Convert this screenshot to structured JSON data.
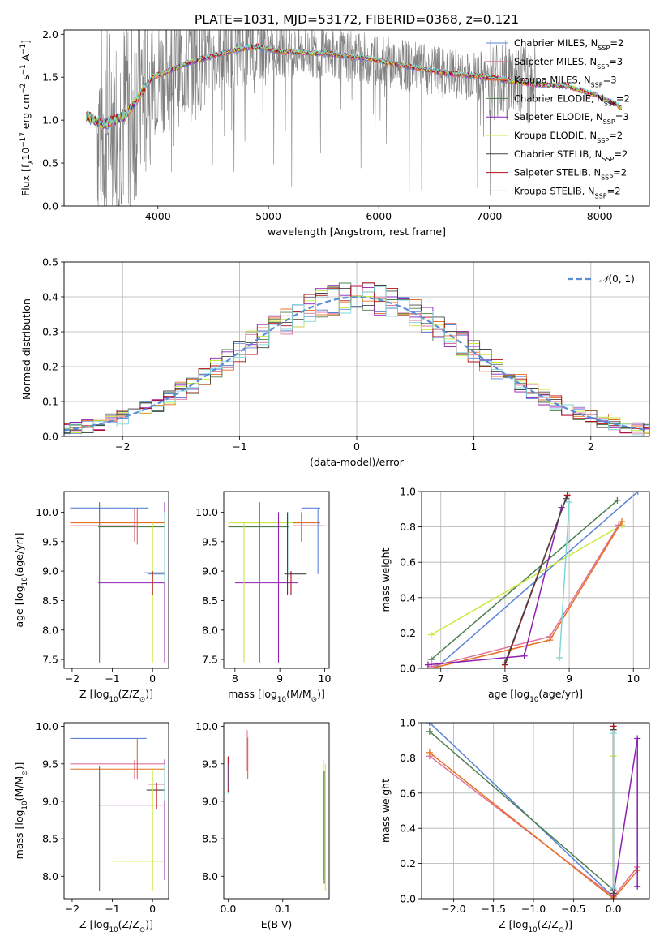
{
  "figure": {
    "title": "PLATE=1031, MJD=53172, FIBERID=0368, z=0.121"
  },
  "colors": {
    "series": [
      "#5b84d6",
      "#e0729a",
      "#e86f1f",
      "#4e7d4e",
      "#8e1fb3",
      "#c8ea3b",
      "#444444",
      "#b01015",
      "#7ed8d8"
    ],
    "data_gray": "#808080",
    "normal_curve": "#5b8dd6",
    "grid": "#b0b0b0"
  },
  "legend": [
    {
      "text": "Chabrier MILES, N",
      "sub": "SSP",
      "tail": "=2"
    },
    {
      "text": "Salpeter MILES, N",
      "sub": "SSP",
      "tail": "=3"
    },
    {
      "text": "Kroupa MILES, N",
      "sub": "SSP",
      "tail": "=3"
    },
    {
      "text": "Chabrier ELODIE, N",
      "sub": "SSP",
      "tail": "=2"
    },
    {
      "text": "Salpeter ELODIE, N",
      "sub": "SSP",
      "tail": "=3"
    },
    {
      "text": "Kroupa ELODIE, N",
      "sub": "SSP",
      "tail": "=2"
    },
    {
      "text": "Chabrier STELIB, N",
      "sub": "SSP",
      "tail": "=2"
    },
    {
      "text": "Salpeter STELIB, N",
      "sub": "SSP",
      "tail": "=2"
    },
    {
      "text": "Kroupa STELIB, N",
      "sub": "SSP",
      "tail": "=2"
    }
  ],
  "chart_data": [
    {
      "id": "spectrum",
      "type": "line",
      "title": "PLATE=1031, MJD=53172, FIBERID=0368, z=0.121",
      "xlabel": "wavelength [Angstrom, rest frame]",
      "ylabel": "Flux [f",
      "ylabel_sub": "λ",
      "ylabel_rest": "10",
      "ylabel_sup": "−17",
      "ylabel_tail": " erg cm",
      "ylabel_sup2": "−2",
      "ylabel_tail2": " s",
      "ylabel_sup3": "−1",
      "ylabel_tail3": " A",
      "ylabel_sup4": "−1",
      "ylabel_end": "]",
      "xlim": [
        3150,
        8450
      ],
      "ylim": [
        0,
        2.05
      ],
      "xticks": [
        4000,
        5000,
        6000,
        7000,
        8000
      ],
      "yticks": [
        0.0,
        0.5,
        1.0,
        1.5,
        2.0
      ],
      "continuum_knots_x": [
        3350,
        3500,
        3700,
        3950,
        4300,
        4700,
        4900,
        5100,
        5500,
        5900,
        6300,
        6600,
        7000,
        7400,
        7700,
        8000,
        8200
      ],
      "continuum_knots_y": [
        1.05,
        0.95,
        1.05,
        1.5,
        1.68,
        1.82,
        1.86,
        1.8,
        1.78,
        1.72,
        1.62,
        1.55,
        1.5,
        1.42,
        1.4,
        1.28,
        1.15
      ],
      "legend_position": "upper right"
    },
    {
      "id": "residual_hist",
      "type": "line",
      "xlabel": "(data-model)/error",
      "ylabel": "Normed distribution",
      "xlim": [
        -2.5,
        2.5
      ],
      "ylim": [
        0,
        0.5
      ],
      "xticks": [
        -2,
        -1,
        0,
        1,
        2
      ],
      "yticks": [
        0.0,
        0.1,
        0.2,
        0.3,
        0.4,
        0.5
      ],
      "bin_width": 0.1,
      "normal_curve": {
        "name": "N(0,1)",
        "label_main": "𝒩",
        "label_args": "(0, 1)",
        "mu": 0,
        "sigma": 1
      },
      "legend_position": "upper right",
      "grid": true
    },
    {
      "id": "age_vs_Z",
      "type": "scatter",
      "xlabel": "Z [log",
      "xlabel_sub": "10",
      "xlabel_tail": "(Z/Z",
      "xlabel_sub2": "⊙",
      "xlabel_end": ")]",
      "ylabel": "age  [log",
      "ylabel_sub": "10",
      "ylabel_tail": "(age/yr)]",
      "xlim": [
        -2.2,
        0.4
      ],
      "ylim": [
        7.35,
        10.35
      ],
      "xticks": [
        -2,
        -1,
        0
      ],
      "yticks": [
        7.5,
        8.0,
        8.5,
        9.0,
        9.5,
        10.0
      ],
      "hlines": [
        {
          "c": 0,
          "y": 10.07,
          "x0": -2.05,
          "x1": -0.1
        },
        {
          "c": 1,
          "y": 9.77,
          "x0": -2.05,
          "x1": -0.45
        },
        {
          "c": 2,
          "y": 9.82,
          "x0": -2.05,
          "x1": 0.3
        },
        {
          "c": 3,
          "y": 9.75,
          "x0": -1.35,
          "x1": 0.3
        },
        {
          "c": 4,
          "y": 8.8,
          "x0": -1.35,
          "x1": 0.3
        },
        {
          "c": 6,
          "y": 8.97,
          "x0": -0.2,
          "x1": 0.3
        },
        {
          "c": 0,
          "y": 8.95,
          "x0": -0.1,
          "x1": 0.3
        }
      ],
      "vlines": [
        {
          "c": 3,
          "x": -1.32,
          "y0": 7.45,
          "y1": 10.17
        },
        {
          "c": 2,
          "x": -0.38,
          "y0": 9.45,
          "y1": 10.07
        },
        {
          "c": 1,
          "x": -0.45,
          "y0": 9.5,
          "y1": 10.05
        },
        {
          "c": 5,
          "x": 0.0,
          "y0": 7.45,
          "y1": 9.82
        },
        {
          "c": 7,
          "x": 0.0,
          "y0": 8.6,
          "y1": 9.0
        },
        {
          "c": 4,
          "x": 0.3,
          "y0": 7.45,
          "y1": 10.17
        },
        {
          "c": 8,
          "x": 0.3,
          "y0": 8.8,
          "y1": 10.0
        }
      ]
    },
    {
      "id": "age_vs_mass",
      "type": "scatter",
      "xlabel": "mass [log",
      "xlabel_sub": "10",
      "xlabel_tail": "(M/M",
      "xlabel_sub2": "⊙",
      "xlabel_end": ")]",
      "xlim": [
        7.75,
        10.1
      ],
      "ylim": [
        7.35,
        10.35
      ],
      "xticks": [
        8,
        9,
        10
      ],
      "yticks": [
        7.5,
        8.0,
        8.5,
        9.0,
        9.5,
        10.0
      ],
      "hlines": [
        {
          "c": 5,
          "y": 9.82,
          "x0": 7.85,
          "x1": 9.55
        },
        {
          "c": 3,
          "y": 9.75,
          "x0": 7.85,
          "x1": 9.2
        },
        {
          "c": 2,
          "y": 9.82,
          "x0": 9.3,
          "x1": 9.9
        },
        {
          "c": 1,
          "y": 9.77,
          "x0": 9.3,
          "x1": 10.0
        },
        {
          "c": 0,
          "y": 10.07,
          "x0": 9.5,
          "x1": 9.9
        },
        {
          "c": 4,
          "y": 8.8,
          "x0": 8.0,
          "x1": 9.4
        },
        {
          "c": 6,
          "y": 8.95,
          "x0": 9.1,
          "x1": 9.6
        }
      ],
      "vlines": [
        {
          "c": 5,
          "x": 8.2,
          "y0": 7.45,
          "y1": 9.82
        },
        {
          "c": 3,
          "x": 8.55,
          "y0": 7.45,
          "y1": 10.17
        },
        {
          "c": 4,
          "x": 8.97,
          "y0": 7.45,
          "y1": 10.0
        },
        {
          "c": 6,
          "x": 9.17,
          "y0": 8.6,
          "y1": 10.0
        },
        {
          "c": 7,
          "x": 9.25,
          "y0": 8.6,
          "y1": 9.0
        },
        {
          "c": 8,
          "x": 9.2,
          "y0": 8.9,
          "y1": 10.0
        },
        {
          "c": 2,
          "x": 9.48,
          "y0": 9.5,
          "y1": 10.0
        },
        {
          "c": 0,
          "x": 9.85,
          "y0": 8.95,
          "y1": 10.07
        }
      ]
    },
    {
      "id": "weight_vs_age",
      "type": "line",
      "xlabel": "age  [log",
      "xlabel_sub": "10",
      "xlabel_tail": "(age/yr)]",
      "ylabel": "mass weight",
      "xlim": [
        6.7,
        10.25
      ],
      "ylim": [
        0,
        1.0
      ],
      "xticks": [
        7,
        8,
        9,
        10
      ],
      "yticks": [
        0.0,
        0.2,
        0.4,
        0.6,
        0.8,
        1.0
      ],
      "grid": true,
      "series": [
        {
          "c": 0,
          "x": [
            6.95,
            10.07
          ],
          "y": [
            0.01,
            1.0
          ]
        },
        {
          "c": 3,
          "x": [
            6.85,
            9.75
          ],
          "y": [
            0.05,
            0.95
          ]
        },
        {
          "c": 5,
          "x": [
            6.85,
            9.82
          ],
          "y": [
            0.19,
            0.81
          ]
        },
        {
          "c": 1,
          "x": [
            6.85,
            8.7,
            9.77
          ],
          "y": [
            0.01,
            0.18,
            0.81
          ]
        },
        {
          "c": 2,
          "x": [
            6.85,
            8.7,
            9.82
          ],
          "y": [
            0.0,
            0.16,
            0.83
          ]
        },
        {
          "c": 4,
          "x": [
            6.8,
            8.3,
            8.88
          ],
          "y": [
            0.02,
            0.07,
            0.91
          ]
        },
        {
          "c": 7,
          "x": [
            8.0,
            8.97
          ],
          "y": [
            0.02,
            0.98
          ]
        },
        {
          "c": 6,
          "x": [
            8.0,
            8.95
          ],
          "y": [
            0.03,
            0.96
          ]
        },
        {
          "c": 8,
          "x": [
            8.85,
            9.0
          ],
          "y": [
            0.06,
            0.94
          ]
        }
      ]
    },
    {
      "id": "mass_vs_Z",
      "type": "scatter",
      "xlabel": "Z [log",
      "xlabel_sub": "10",
      "xlabel_tail": "(Z/Z",
      "xlabel_sub2": "⊙",
      "xlabel_end": ")]",
      "ylabel": "mass [log",
      "ylabel_sub": "10",
      "ylabel_tail": "(M/M",
      "ylabel_sub2": "⊙",
      "ylabel_end": ")]",
      "xlim": [
        -2.2,
        0.4
      ],
      "ylim": [
        7.7,
        10.05
      ],
      "xticks": [
        -2,
        -1,
        0
      ],
      "yticks": [
        8.0,
        8.5,
        9.0,
        9.5,
        10.0
      ],
      "hlines": [
        {
          "c": 0,
          "y": 9.84,
          "x0": -2.05,
          "x1": -0.15
        },
        {
          "c": 1,
          "y": 9.5,
          "x0": -2.05,
          "x1": 0.3
        },
        {
          "c": 2,
          "y": 9.43,
          "x0": -2.05,
          "x1": 0.3
        },
        {
          "c": 3,
          "y": 8.55,
          "x0": -1.5,
          "x1": 0.3
        },
        {
          "c": 4,
          "y": 8.95,
          "x0": -1.35,
          "x1": 0.3
        },
        {
          "c": 5,
          "y": 8.2,
          "x0": -1.0,
          "x1": 0.3
        },
        {
          "c": 6,
          "y": 9.15,
          "x0": -0.15,
          "x1": 0.3
        },
        {
          "c": 7,
          "y": 9.23,
          "x0": -0.1,
          "x1": 0.3
        }
      ],
      "vlines": [
        {
          "c": 3,
          "x": -1.32,
          "y0": 7.8,
          "y1": 9.47
        },
        {
          "c": 2,
          "x": -0.38,
          "y0": 9.3,
          "y1": 9.84
        },
        {
          "c": 1,
          "x": -0.45,
          "y0": 9.3,
          "y1": 9.55
        },
        {
          "c": 5,
          "x": 0.0,
          "y0": 7.8,
          "y1": 9.43
        },
        {
          "c": 7,
          "x": 0.1,
          "y0": 8.9,
          "y1": 9.25
        },
        {
          "c": 4,
          "x": 0.3,
          "y0": 7.95,
          "y1": 9.56
        },
        {
          "c": 8,
          "x": 0.3,
          "y0": 9.0,
          "y1": 9.5
        }
      ]
    },
    {
      "id": "mass_vs_ebv",
      "type": "scatter",
      "xlabel": "E(B-V)",
      "xlim": [
        -0.008,
        0.185
      ],
      "ylim": [
        7.7,
        10.05
      ],
      "xticks": [
        0.0,
        0.1
      ],
      "yticks": [
        8.0,
        8.5,
        9.0,
        9.5,
        10.0
      ],
      "vlines": [
        {
          "c": 8,
          "x": 0.0,
          "y0": 9.1,
          "y1": 9.55
        },
        {
          "c": 7,
          "x": 0.0,
          "y0": 9.12,
          "y1": 9.6
        },
        {
          "c": 0,
          "x": 0.001,
          "y0": 9.15,
          "y1": 9.5
        },
        {
          "c": 1,
          "x": 0.035,
          "y0": 9.4,
          "y1": 9.95
        },
        {
          "c": 2,
          "x": 0.036,
          "y0": 9.3,
          "y1": 9.85
        },
        {
          "c": 4,
          "x": 0.174,
          "y0": 7.95,
          "y1": 9.56
        },
        {
          "c": 5,
          "x": 0.178,
          "y0": 7.8,
          "y1": 9.5
        },
        {
          "c": 3,
          "x": 0.176,
          "y0": 7.9,
          "y1": 9.4
        }
      ]
    },
    {
      "id": "weight_vs_Z",
      "type": "line",
      "xlabel": "Z [log",
      "xlabel_sub": "10",
      "xlabel_tail": "(Z/Z",
      "xlabel_sub2": "⊙",
      "xlabel_end": ")]",
      "ylabel": "mass weight",
      "xlim": [
        -2.4,
        0.45
      ],
      "ylim": [
        0,
        1.0
      ],
      "xticks": [
        -2.0,
        -1.5,
        -1.0,
        -0.5,
        0.0
      ],
      "yticks": [
        0.0,
        0.2,
        0.4,
        0.6,
        0.8,
        1.0
      ],
      "grid": true,
      "series": [
        {
          "c": 0,
          "x": [
            -2.3,
            0.0
          ],
          "y": [
            1.0,
            0.01
          ]
        },
        {
          "c": 3,
          "x": [
            -2.3,
            0.0
          ],
          "y": [
            0.95,
            0.05
          ]
        },
        {
          "c": 1,
          "x": [
            -2.3,
            0.0,
            0.3
          ],
          "y": [
            0.81,
            0.01,
            0.18
          ]
        },
        {
          "c": 2,
          "x": [
            -2.3,
            0.0,
            0.3
          ],
          "y": [
            0.83,
            0.0,
            0.16
          ]
        },
        {
          "c": 4,
          "x": [
            0.0,
            0.3,
            0.3
          ],
          "y": [
            0.02,
            0.91,
            0.07
          ]
        },
        {
          "c": 5,
          "x": [
            0.0,
            0.0
          ],
          "y": [
            0.19,
            0.81
          ]
        },
        {
          "c": 7,
          "x": [
            0.0,
            0.0
          ],
          "y": [
            0.02,
            0.98
          ]
        },
        {
          "c": 6,
          "x": [
            0.0,
            0.0
          ],
          "y": [
            0.03,
            0.96
          ]
        },
        {
          "c": 8,
          "x": [
            0.0,
            0.0
          ],
          "y": [
            0.06,
            0.94
          ]
        }
      ]
    }
  ]
}
